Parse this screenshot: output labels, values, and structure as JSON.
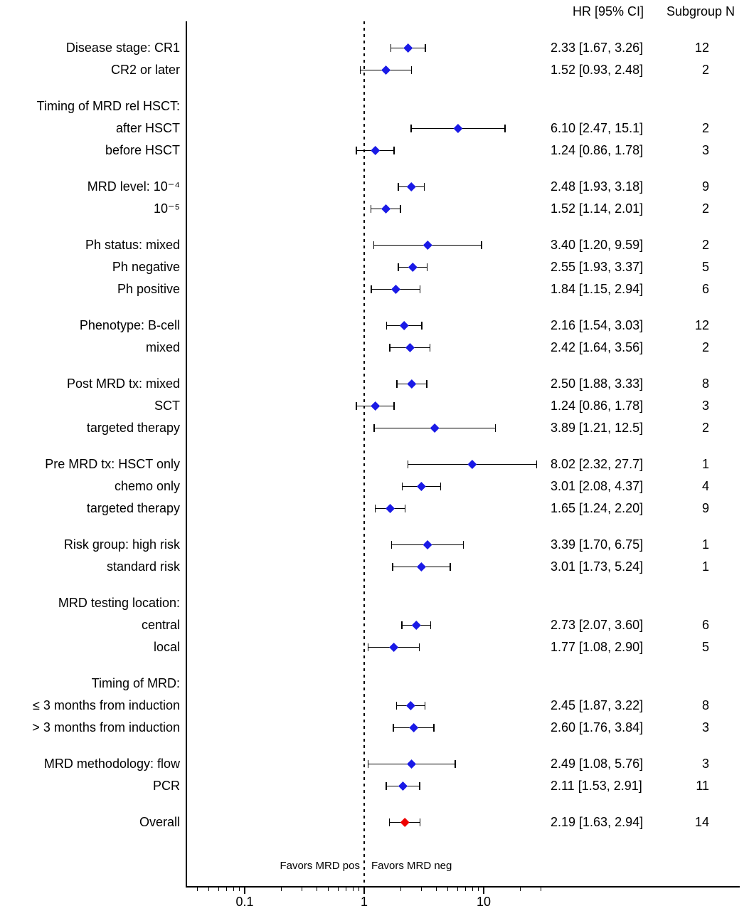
{
  "columns": {
    "hr_header": "HR [95% CI]",
    "n_header": "Subgroup N"
  },
  "chart_data": {
    "type": "forest",
    "xscale": "log",
    "reference_line": 1,
    "axis_major_ticks": [
      0.1,
      1,
      10
    ],
    "axis_major_tick_labels": [
      "0.1",
      "1",
      "10"
    ],
    "axis_minor_ticks": [
      0.04,
      0.05,
      0.06,
      0.07,
      0.08,
      0.09,
      0.2,
      0.3,
      0.4,
      0.5,
      0.6,
      0.7,
      0.8,
      0.9,
      2,
      3,
      4,
      5,
      6,
      7,
      8,
      9,
      20,
      30
    ],
    "favors_left": "Favors MRD pos",
    "favors_right": "Favors MRD neg",
    "subgroup_marker_color": "#1a1ae6",
    "overall_marker_color": "#ee0000",
    "ci_line_color": "#000000",
    "rows": [
      {
        "type": "estimate",
        "label": "Disease stage: CR1",
        "hr": 2.33,
        "lo": 1.67,
        "hi": 3.26,
        "ci_text": "2.33 [1.67, 3.26]",
        "n": "12"
      },
      {
        "type": "estimate",
        "label": "CR2 or later",
        "hr": 1.52,
        "lo": 0.93,
        "hi": 2.48,
        "ci_text": "1.52 [0.93, 2.48]",
        "n": "2"
      },
      {
        "type": "gap"
      },
      {
        "type": "group_label",
        "label": "Timing of MRD rel HSCT:"
      },
      {
        "type": "estimate",
        "label": "after HSCT",
        "hr": 6.1,
        "lo": 2.47,
        "hi": 15.1,
        "ci_text": "6.10 [2.47, 15.1]",
        "n": "2"
      },
      {
        "type": "estimate",
        "label": "before HSCT",
        "hr": 1.24,
        "lo": 0.86,
        "hi": 1.78,
        "ci_text": "1.24 [0.86, 1.78]",
        "n": "3"
      },
      {
        "type": "gap"
      },
      {
        "type": "estimate",
        "label": "MRD level: 10⁻⁴",
        "hr": 2.48,
        "lo": 1.93,
        "hi": 3.18,
        "ci_text": "2.48 [1.93, 3.18]",
        "n": "9"
      },
      {
        "type": "estimate",
        "label": "10⁻⁵",
        "hr": 1.52,
        "lo": 1.14,
        "hi": 2.01,
        "ci_text": "1.52 [1.14, 2.01]",
        "n": "2"
      },
      {
        "type": "gap"
      },
      {
        "type": "estimate",
        "label": "Ph status: mixed",
        "hr": 3.4,
        "lo": 1.2,
        "hi": 9.59,
        "ci_text": "3.40 [1.20, 9.59]",
        "n": "2"
      },
      {
        "type": "estimate",
        "label": "Ph negative",
        "hr": 2.55,
        "lo": 1.93,
        "hi": 3.37,
        "ci_text": "2.55 [1.93, 3.37]",
        "n": "5"
      },
      {
        "type": "estimate",
        "label": "Ph positive",
        "hr": 1.84,
        "lo": 1.15,
        "hi": 2.94,
        "ci_text": "1.84 [1.15, 2.94]",
        "n": "6"
      },
      {
        "type": "gap"
      },
      {
        "type": "estimate",
        "label": "Phenotype: B-cell",
        "hr": 2.16,
        "lo": 1.54,
        "hi": 3.03,
        "ci_text": "2.16 [1.54, 3.03]",
        "n": "12"
      },
      {
        "type": "estimate",
        "label": "mixed",
        "hr": 2.42,
        "lo": 1.64,
        "hi": 3.56,
        "ci_text": "2.42 [1.64, 3.56]",
        "n": "2"
      },
      {
        "type": "gap"
      },
      {
        "type": "estimate",
        "label": "Post MRD tx: mixed",
        "hr": 2.5,
        "lo": 1.88,
        "hi": 3.33,
        "ci_text": "2.50 [1.88, 3.33]",
        "n": "8"
      },
      {
        "type": "estimate",
        "label": "SCT",
        "hr": 1.24,
        "lo": 0.86,
        "hi": 1.78,
        "ci_text": "1.24 [0.86, 1.78]",
        "n": "3"
      },
      {
        "type": "estimate",
        "label": "targeted therapy",
        "hr": 3.89,
        "lo": 1.21,
        "hi": 12.5,
        "ci_text": "3.89 [1.21, 12.5]",
        "n": "2"
      },
      {
        "type": "gap"
      },
      {
        "type": "estimate",
        "label": "Pre MRD tx: HSCT only",
        "hr": 8.02,
        "lo": 2.32,
        "hi": 27.7,
        "ci_text": "8.02 [2.32, 27.7]",
        "n": "1"
      },
      {
        "type": "estimate",
        "label": "chemo only",
        "hr": 3.01,
        "lo": 2.08,
        "hi": 4.37,
        "ci_text": "3.01 [2.08, 4.37]",
        "n": "4"
      },
      {
        "type": "estimate",
        "label": "targeted therapy",
        "hr": 1.65,
        "lo": 1.24,
        "hi": 2.2,
        "ci_text": "1.65 [1.24, 2.20]",
        "n": "9"
      },
      {
        "type": "gap"
      },
      {
        "type": "estimate",
        "label": "Risk group: high risk",
        "hr": 3.39,
        "lo": 1.7,
        "hi": 6.75,
        "ci_text": "3.39 [1.70, 6.75]",
        "n": "1"
      },
      {
        "type": "estimate",
        "label": "standard risk",
        "hr": 3.01,
        "lo": 1.73,
        "hi": 5.24,
        "ci_text": "3.01 [1.73, 5.24]",
        "n": "1"
      },
      {
        "type": "gap"
      },
      {
        "type": "group_label",
        "label": "MRD testing location:"
      },
      {
        "type": "estimate",
        "label": "central",
        "hr": 2.73,
        "lo": 2.07,
        "hi": 3.6,
        "ci_text": "2.73 [2.07, 3.60]",
        "n": "6"
      },
      {
        "type": "estimate",
        "label": "local",
        "hr": 1.77,
        "lo": 1.08,
        "hi": 2.9,
        "ci_text": "1.77 [1.08, 2.90]",
        "n": "5"
      },
      {
        "type": "gap"
      },
      {
        "type": "group_label",
        "label": "Timing of MRD:"
      },
      {
        "type": "estimate",
        "label": "≤ 3 months from induction",
        "hr": 2.45,
        "lo": 1.87,
        "hi": 3.22,
        "ci_text": "2.45 [1.87, 3.22]",
        "n": "8"
      },
      {
        "type": "estimate",
        "label": "> 3 months from induction",
        "hr": 2.6,
        "lo": 1.76,
        "hi": 3.84,
        "ci_text": "2.60 [1.76, 3.84]",
        "n": "3"
      },
      {
        "type": "gap"
      },
      {
        "type": "estimate",
        "label": "MRD methodology: flow",
        "hr": 2.49,
        "lo": 1.08,
        "hi": 5.76,
        "ci_text": "2.49 [1.08, 5.76]",
        "n": "3"
      },
      {
        "type": "estimate",
        "label": "PCR",
        "hr": 2.11,
        "lo": 1.53,
        "hi": 2.91,
        "ci_text": "2.11 [1.53, 2.91]",
        "n": "11"
      },
      {
        "type": "gap"
      },
      {
        "type": "estimate",
        "label": "Overall",
        "hr": 2.19,
        "lo": 1.63,
        "hi": 2.94,
        "ci_text": "2.19 [1.63, 2.94]",
        "n": "14",
        "overall": true
      }
    ]
  }
}
